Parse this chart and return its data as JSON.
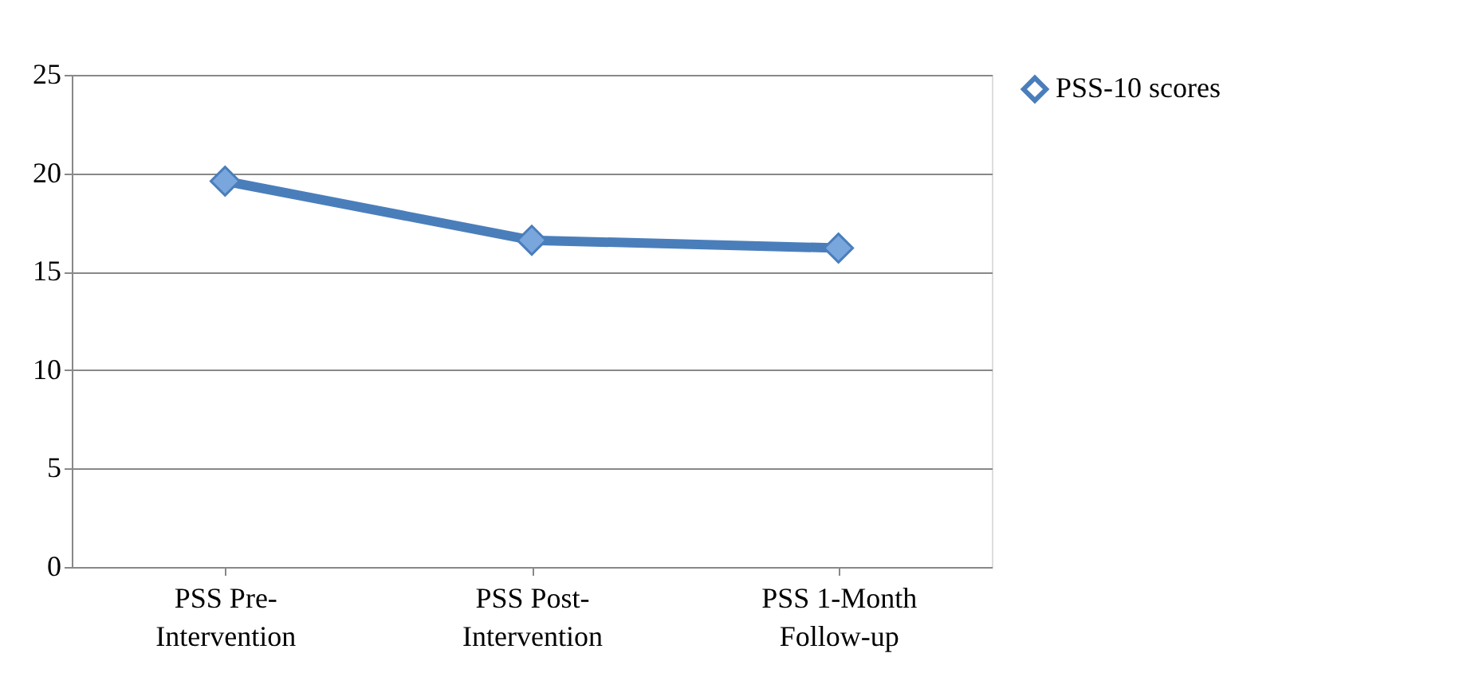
{
  "chart_data": {
    "type": "line",
    "categories": [
      "PSS Pre-\nIntervention",
      "PSS Post-\nIntervention",
      "PSS 1-Month\nFollow-up"
    ],
    "series": [
      {
        "name": "PSS-10 scores",
        "color": "#4a7ebb",
        "values": [
          19.6,
          16.6,
          16.2
        ]
      }
    ],
    "ylim": [
      0,
      25
    ],
    "yticks": [
      0,
      5,
      10,
      15,
      20,
      25
    ],
    "grid": "y",
    "legend": "right",
    "marker": "diamond",
    "line_style": "solid"
  }
}
